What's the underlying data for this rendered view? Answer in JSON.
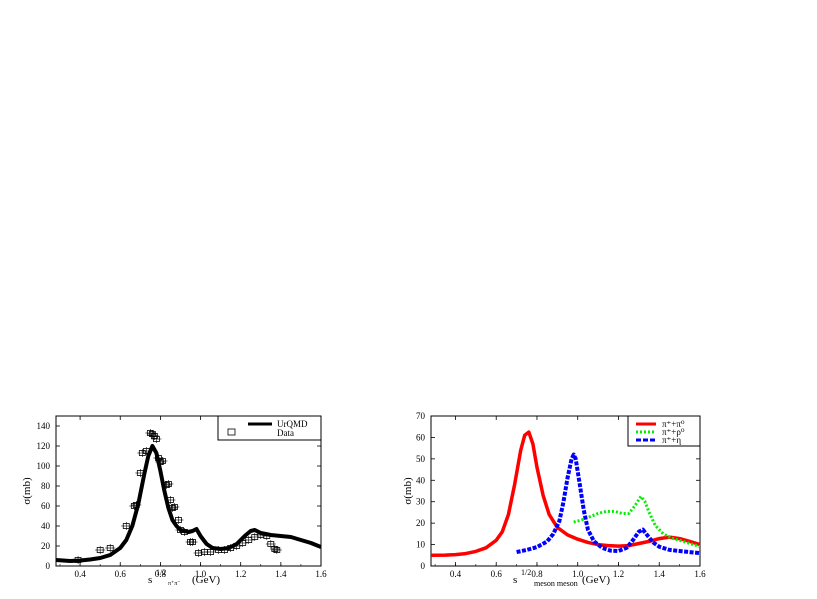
{
  "chart_data": [
    {
      "type": "line",
      "title": "",
      "xlabel": "s^{1/2}_{π+π-} (GeV)",
      "xlabel_main": "s",
      "xlabel_sup": "1/2",
      "xlabel_sub": "π⁺π⁻",
      "xlabel_unit": "(GeV)",
      "ylabel": "σ(mb)",
      "xlim": [
        0.28,
        1.6
      ],
      "ylim": [
        0,
        150
      ],
      "xticks": [
        0.4,
        0.6,
        0.8,
        1.0,
        1.2,
        1.4,
        1.6
      ],
      "xtick_labels": [
        "0.4",
        "0.6",
        "0.8",
        "1.0",
        "1.2",
        "1.4",
        "1.6"
      ],
      "yticks": [
        0,
        20,
        40,
        60,
        80,
        100,
        120,
        140
      ],
      "ytick_labels": [
        "0",
        "20",
        "40",
        "60",
        "80",
        "100",
        "120",
        "140"
      ],
      "grid": false,
      "legend_position": "upper right",
      "legend": [
        "UrQMD",
        "Data"
      ],
      "series": [
        {
          "name": "UrQMD",
          "style": "solid-thick",
          "color": "#000000",
          "x": [
            0.28,
            0.35,
            0.4,
            0.45,
            0.5,
            0.55,
            0.6,
            0.63,
            0.66,
            0.69,
            0.72,
            0.74,
            0.76,
            0.78,
            0.8,
            0.82,
            0.84,
            0.86,
            0.88,
            0.9,
            0.92,
            0.94,
            0.96,
            0.98,
            1.0,
            1.03,
            1.06,
            1.1,
            1.14,
            1.18,
            1.22,
            1.25,
            1.27,
            1.3,
            1.35,
            1.4,
            1.45,
            1.5,
            1.55,
            1.6
          ],
          "values": [
            6,
            5,
            5.5,
            6.5,
            8,
            11,
            18,
            26,
            40,
            62,
            92,
            110,
            120,
            113,
            95,
            75,
            58,
            46,
            40,
            36,
            35,
            34,
            35,
            37,
            30,
            22,
            18,
            17,
            18,
            22,
            30,
            35,
            36,
            33,
            31,
            30,
            29,
            26,
            23,
            19
          ]
        },
        {
          "name": "Data",
          "style": "open-square-markers",
          "color": "#000000",
          "x": [
            0.39,
            0.5,
            0.55,
            0.63,
            0.67,
            0.68,
            0.7,
            0.71,
            0.73,
            0.75,
            0.76,
            0.77,
            0.78,
            0.79,
            0.8,
            0.81,
            0.83,
            0.84,
            0.85,
            0.86,
            0.87,
            0.89,
            0.9,
            0.92,
            0.95,
            0.96,
            0.99,
            1.02,
            1.05,
            1.09,
            1.12,
            1.15,
            1.18,
            1.21,
            1.24,
            1.27,
            1.3,
            1.33,
            1.35,
            1.37,
            1.38
          ],
          "values": [
            6,
            16,
            18,
            40,
            60,
            61,
            93,
            113,
            115,
            133,
            132,
            130,
            127,
            108,
            104,
            105,
            81,
            82,
            66,
            58,
            59,
            46,
            36,
            34,
            24,
            24,
            13,
            14,
            14,
            16,
            16,
            18,
            20,
            23,
            26,
            29,
            31,
            30,
            22,
            17,
            16
          ]
        }
      ]
    },
    {
      "type": "line",
      "title": "",
      "xlabel": "s^{1/2}_{meson meson} (GeV)",
      "xlabel_main": "s",
      "xlabel_sup": "1/2",
      "xlabel_sub": "meson meson",
      "xlabel_unit": "(GeV)",
      "ylabel": "σ(mb)",
      "xlim": [
        0.28,
        1.6
      ],
      "ylim": [
        0,
        70
      ],
      "xticks": [
        0.4,
        0.6,
        0.8,
        1.0,
        1.2,
        1.4,
        1.6
      ],
      "xtick_labels": [
        "0.4",
        "0.6",
        "0.8",
        "1.0",
        "1.2",
        "1.4",
        "1.6"
      ],
      "yticks": [
        0,
        10,
        20,
        30,
        40,
        50,
        60,
        70
      ],
      "ytick_labels": [
        "0",
        "10",
        "20",
        "30",
        "40",
        "50",
        "60",
        "70"
      ],
      "grid": false,
      "legend_position": "upper right",
      "legend": [
        "π⁺+π⁰",
        "π⁺+ρ⁰",
        "π⁺+η"
      ],
      "series": [
        {
          "name": "π⁺+π⁰",
          "style": "solid",
          "color": "#ff0000",
          "x": [
            0.28,
            0.35,
            0.4,
            0.45,
            0.5,
            0.55,
            0.6,
            0.63,
            0.66,
            0.69,
            0.72,
            0.74,
            0.76,
            0.78,
            0.8,
            0.83,
            0.86,
            0.9,
            0.95,
            1.0,
            1.05,
            1.1,
            1.15,
            1.2,
            1.25,
            1.3,
            1.35,
            1.4,
            1.45,
            1.5,
            1.55,
            1.6
          ],
          "values": [
            5,
            5.1,
            5.3,
            5.8,
            6.8,
            8.5,
            12,
            16,
            24,
            38,
            54,
            61,
            62.5,
            57,
            46,
            33,
            24,
            18,
            14.5,
            12.5,
            11,
            10,
            9.5,
            9.3,
            9.5,
            10.5,
            11.5,
            12.8,
            13.5,
            12.8,
            11.5,
            10
          ]
        },
        {
          "name": "π⁺+ρ⁰",
          "style": "dotted",
          "color": "#00ee00",
          "x": [
            0.98,
            1.02,
            1.06,
            1.1,
            1.14,
            1.18,
            1.22,
            1.25,
            1.28,
            1.31,
            1.33,
            1.35,
            1.38,
            1.42,
            1.46,
            1.5,
            1.55,
            1.6
          ],
          "values": [
            20.5,
            21.5,
            23,
            24.5,
            25.5,
            25.5,
            24.5,
            24.5,
            28,
            32.5,
            30,
            25,
            19,
            15,
            13,
            12,
            10.5,
            9
          ]
        },
        {
          "name": "π⁺+η",
          "style": "dashed",
          "color": "#0000ff",
          "x": [
            0.7,
            0.75,
            0.8,
            0.85,
            0.88,
            0.91,
            0.93,
            0.95,
            0.97,
            0.98,
            0.99,
            1.01,
            1.03,
            1.05,
            1.08,
            1.12,
            1.16,
            1.2,
            1.24,
            1.27,
            1.3,
            1.32,
            1.34,
            1.37,
            1.4,
            1.45,
            1.5,
            1.55,
            1.6
          ],
          "values": [
            6.5,
            7.5,
            8.8,
            11.5,
            15,
            21,
            30,
            41,
            50,
            52,
            50,
            38,
            26,
            17,
            11.5,
            8.5,
            7.2,
            7,
            8.5,
            12,
            16,
            17,
            14.5,
            11,
            9,
            7.5,
            7,
            6.5,
            6
          ]
        }
      ]
    }
  ]
}
